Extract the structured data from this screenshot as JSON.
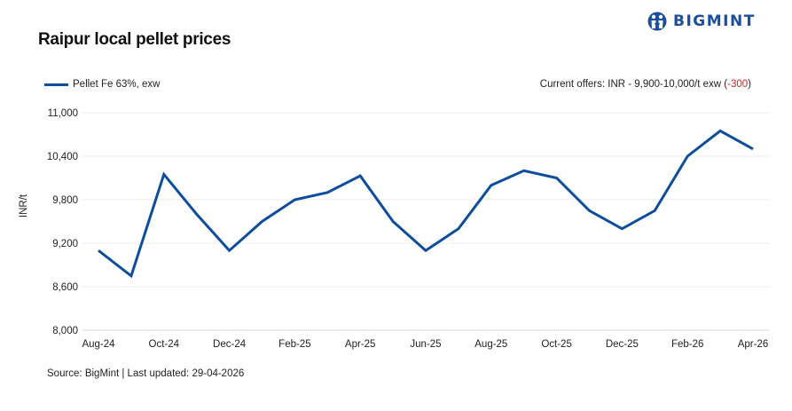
{
  "header": {
    "title": "Raipur local pellet prices",
    "logo_text": "BIGMINT"
  },
  "legend": {
    "series_label": "Pellet Fe 63%, exw",
    "color": "#0d4d9c"
  },
  "offer": {
    "prefix": "Current offers: INR - 9,900-10,000/t exw (",
    "change": "-300",
    "suffix": ")",
    "change_color": "#e02020"
  },
  "footer": {
    "source": "Source: BigMint | Last updated: 29-04-2026"
  },
  "chart_data": {
    "type": "line",
    "title": "Raipur local pellet prices",
    "xlabel": "",
    "ylabel": "INR/t",
    "ylim": [
      8000,
      11000
    ],
    "yticks": [
      8000,
      8600,
      9200,
      9800,
      10400,
      11000
    ],
    "ytick_labels": [
      "8,000",
      "8,600",
      "9,200",
      "9,800",
      "10,400",
      "11,000"
    ],
    "grid": true,
    "legend_position": "top-left",
    "x": [
      "Aug-24",
      "Sep-24",
      "Oct-24",
      "Nov-24",
      "Dec-24",
      "Jan-25",
      "Feb-25",
      "Mar-25",
      "Apr-25",
      "May-25",
      "Jun-25",
      "Jul-25",
      "Aug-25",
      "Sep-25",
      "Oct-25",
      "Nov-25",
      "Dec-25",
      "Jan-26",
      "Feb-26",
      "Mar-26",
      "Apr-26"
    ],
    "xtick_labels": [
      "Aug-24",
      "Oct-24",
      "Dec-24",
      "Feb-25",
      "Apr-25",
      "Jun-25",
      "Aug-25",
      "Oct-25",
      "Dec-25",
      "Feb-26",
      "Apr-26"
    ],
    "series": [
      {
        "name": "Pellet Fe 63%, exw",
        "color": "#0d4d9c",
        "values": [
          9100,
          8750,
          10150,
          9600,
          9100,
          9500,
          9800,
          9900,
          10130,
          9500,
          9100,
          9400,
          10000,
          10200,
          10100,
          9650,
          9400,
          9650,
          10400,
          10750,
          10500
        ]
      }
    ],
    "annotations": [
      "Current offers: INR - 9,900-10,000/t exw (-300)"
    ]
  }
}
